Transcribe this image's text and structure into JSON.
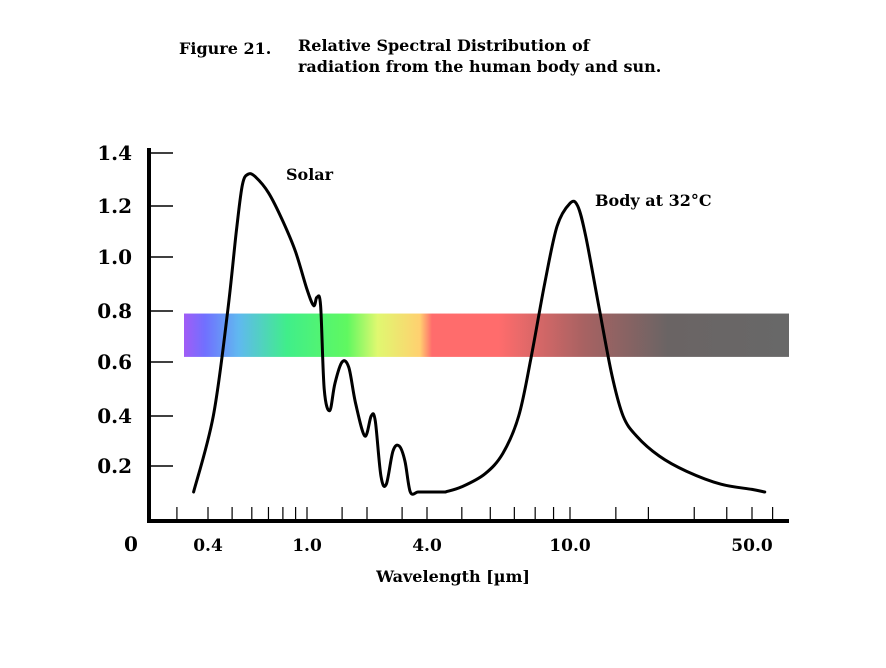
{
  "figure": {
    "label": "Figure 21.",
    "caption_line1": "Relative Spectral Distribution of",
    "caption_line2": "radiation from the human body and sun."
  },
  "chart_data": {
    "type": "line",
    "title": "Relative Spectral Distribution of radiation from the human body and sun.",
    "xlabel": "Wavelength [µm]",
    "ylabel": "",
    "x_scale": "log",
    "origin_label": "0",
    "xlim": [
      0.27,
      60
    ],
    "ylim": [
      0,
      1.4
    ],
    "y_ticks": [
      "1.4",
      "1.2",
      "1.0",
      "0.8",
      "0.6",
      "0.4",
      "0.2"
    ],
    "x_ticks": [
      {
        "value": 0.4,
        "label": "0.4"
      },
      {
        "value": 1.0,
        "label": "1.0"
      },
      {
        "value": 4.0,
        "label": "4.0"
      },
      {
        "value": 10.0,
        "label": "10.0"
      },
      {
        "value": 50.0,
        "label": "50.0"
      }
    ],
    "x_minor_ticks": [
      0.3,
      0.4,
      0.5,
      0.6,
      0.7,
      0.8,
      0.9,
      1.0,
      1.5,
      2,
      3,
      4,
      5,
      6,
      7,
      8,
      9,
      10,
      15,
      20,
      30,
      40,
      50,
      60
    ],
    "spectrum_band": {
      "y_range": [
        0.62,
        0.79
      ],
      "x_range": [
        0.29,
        60
      ]
    },
    "series": [
      {
        "name": "Solar",
        "annotation": "Solar",
        "points": [
          [
            0.35,
            0.1
          ],
          [
            0.42,
            0.4
          ],
          [
            0.48,
            0.8
          ],
          [
            0.52,
            1.1
          ],
          [
            0.55,
            1.28
          ],
          [
            0.58,
            1.32
          ],
          [
            0.62,
            1.31
          ],
          [
            0.7,
            1.25
          ],
          [
            0.8,
            1.14
          ],
          [
            0.9,
            1.02
          ],
          [
            1.0,
            0.88
          ],
          [
            1.08,
            0.82
          ],
          [
            1.12,
            0.85
          ],
          [
            1.17,
            0.82
          ],
          [
            1.22,
            0.5
          ],
          [
            1.3,
            0.42
          ],
          [
            1.38,
            0.52
          ],
          [
            1.5,
            0.6
          ],
          [
            1.62,
            0.58
          ],
          [
            1.75,
            0.45
          ],
          [
            1.95,
            0.32
          ],
          [
            2.1,
            0.4
          ],
          [
            2.2,
            0.38
          ],
          [
            2.35,
            0.16
          ],
          [
            2.5,
            0.13
          ],
          [
            2.7,
            0.26
          ],
          [
            2.9,
            0.28
          ],
          [
            3.1,
            0.22
          ],
          [
            3.3,
            0.1
          ],
          [
            3.6,
            0.1
          ],
          [
            4.0,
            0.1
          ],
          [
            4.5,
            0.1
          ]
        ]
      },
      {
        "name": "Body at 32°C",
        "annotation": "Body at 32°C",
        "points": [
          [
            4.5,
            0.1
          ],
          [
            5.0,
            0.12
          ],
          [
            5.8,
            0.17
          ],
          [
            6.5,
            0.25
          ],
          [
            7.2,
            0.4
          ],
          [
            7.8,
            0.62
          ],
          [
            8.5,
            0.9
          ],
          [
            9.2,
            1.12
          ],
          [
            10.0,
            1.21
          ],
          [
            10.7,
            1.2
          ],
          [
            11.5,
            1.08
          ],
          [
            13.0,
            0.8
          ],
          [
            14.5,
            0.55
          ],
          [
            16.0,
            0.4
          ],
          [
            18.0,
            0.32
          ],
          [
            22.0,
            0.24
          ],
          [
            28.0,
            0.18
          ],
          [
            38.0,
            0.13
          ],
          [
            50.0,
            0.11
          ],
          [
            56.0,
            0.1
          ]
        ]
      }
    ]
  }
}
